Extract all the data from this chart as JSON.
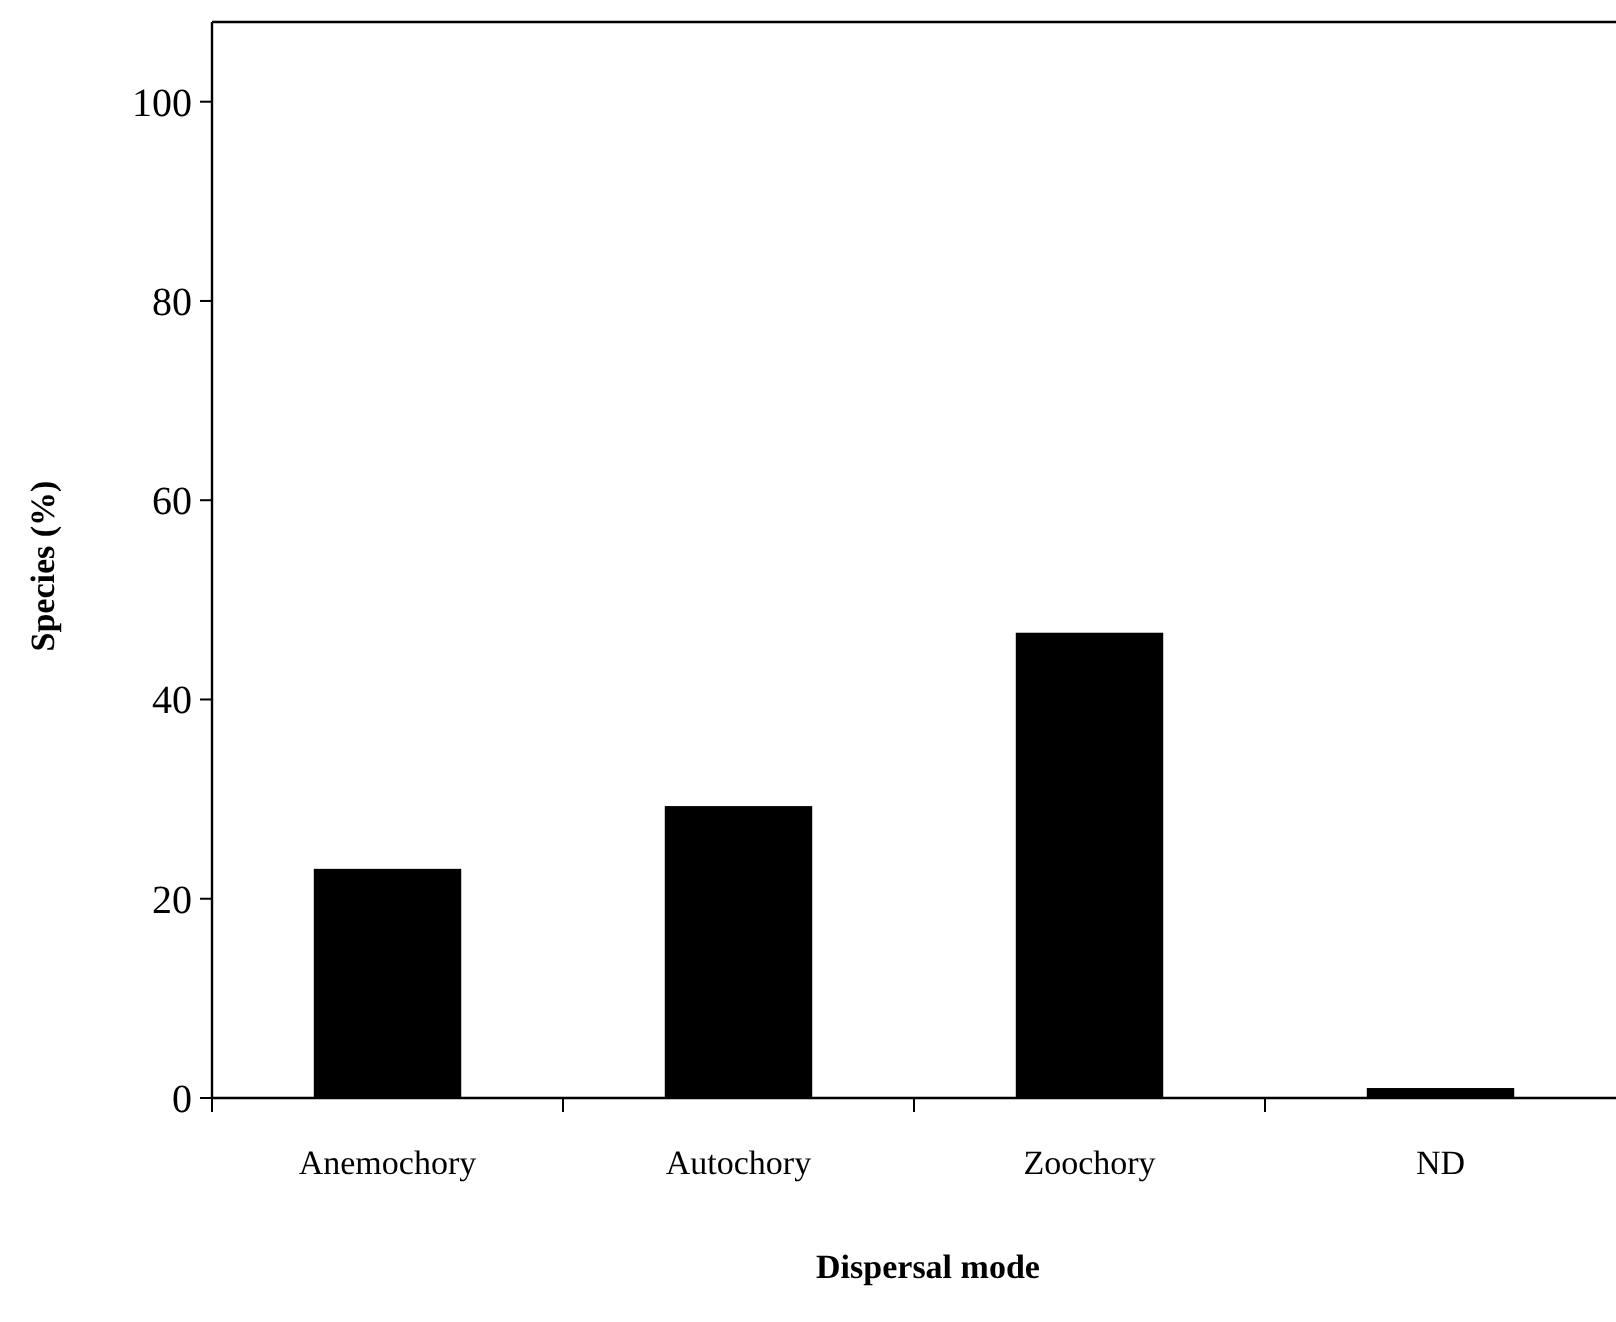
{
  "chart_data": {
    "type": "bar",
    "xlabel": "Dispersal mode",
    "ylabel": "Species (%)",
    "categories": [
      "Anemochory",
      "Autochory",
      "Zoochory",
      "ND"
    ],
    "values": [
      23,
      29.3,
      46.7,
      1
    ],
    "color": "#000000",
    "ylim": [
      0,
      108
    ],
    "yticks": [
      0,
      20,
      40,
      60,
      80,
      100
    ],
    "grid": false
  }
}
